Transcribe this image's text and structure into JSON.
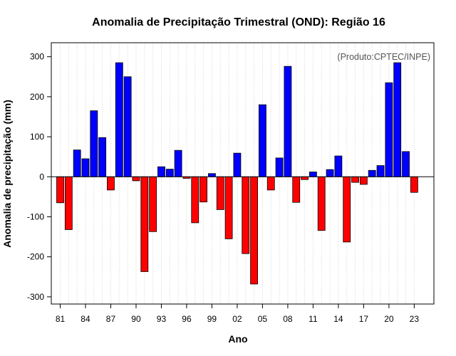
{
  "chart_data": {
    "type": "bar",
    "title": "Anomalia de Precipitação Trimestral (OND): Região 16",
    "xlabel": "Ano",
    "ylabel": "Anomalia de precipitação (mm)",
    "credit": "(Produto:CPTEC/INPE)",
    "ylim": [
      -318,
      335
    ],
    "yticks": [
      -300,
      -200,
      -100,
      0,
      100,
      200,
      300
    ],
    "xtick_labels": [
      "81",
      "84",
      "87",
      "90",
      "93",
      "96",
      "99",
      "02",
      "05",
      "08",
      "11",
      "14",
      "17",
      "20",
      "23"
    ],
    "categories": [
      "1981",
      "1982",
      "1983",
      "1984",
      "1985",
      "1986",
      "1987",
      "1988",
      "1989",
      "1990",
      "1991",
      "1992",
      "1993",
      "1994",
      "1995",
      "1996",
      "1997",
      "1998",
      "1999",
      "2000",
      "2001",
      "2002",
      "2003",
      "2004",
      "2005",
      "2006",
      "2007",
      "2008",
      "2009",
      "2010",
      "2011",
      "2012",
      "2013",
      "2014",
      "2015",
      "2016",
      "2017",
      "2018",
      "2019",
      "2020",
      "2021",
      "2022",
      "2023"
    ],
    "values": [
      -65,
      -132,
      67,
      45,
      165,
      98,
      -33,
      285,
      250,
      -10,
      -237,
      -137,
      25,
      19,
      66,
      -4,
      -115,
      -63,
      8,
      -82,
      -155,
      59,
      -192,
      -268,
      180,
      -33,
      47,
      276,
      -64,
      -7,
      12,
      -134,
      18,
      52,
      -163,
      -14,
      -19,
      16,
      28,
      235,
      285,
      63,
      -39
    ],
    "colors": {
      "positive": "#0000ff",
      "negative": "#ff0000",
      "bar_border": "#000000",
      "grid": "#d3d3d3",
      "zero_line": "#000000"
    }
  }
}
